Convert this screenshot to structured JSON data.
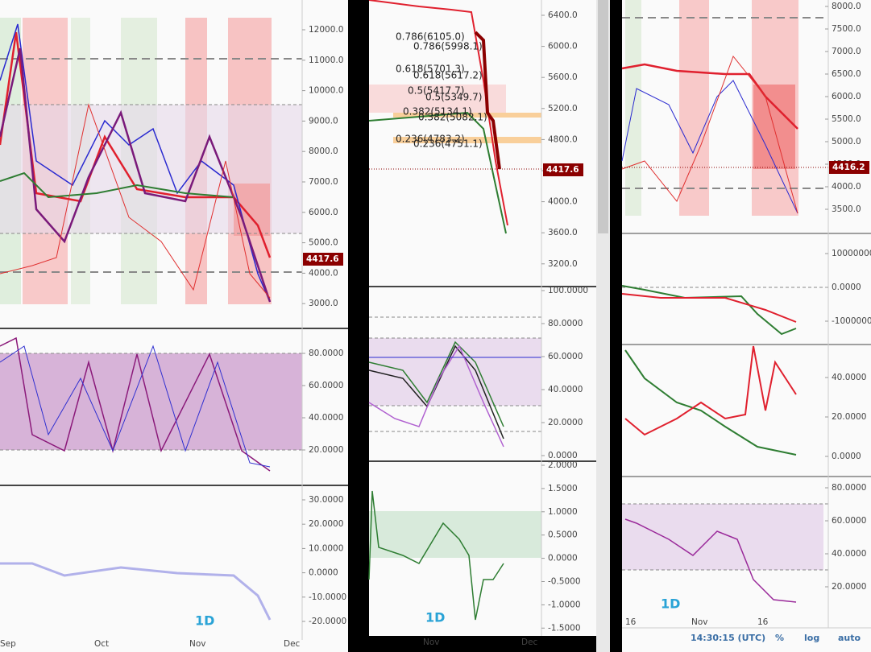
{
  "panels": [
    {
      "price_ticks": [
        "12000.0",
        "11000.0",
        "10000.0",
        "9000.0",
        "8000.0",
        "7000.0",
        "6000.0",
        "5000.0",
        "4000.0",
        "3000.0"
      ],
      "price_tag": "4417.6",
      "osc_ticks": [
        "80.0000",
        "60.0000",
        "40.0000",
        "20.0000"
      ],
      "macd_ticks": [
        "30.0000",
        "20.0000",
        "10.0000",
        "0.0000",
        "-10.0000",
        "-20.0000"
      ],
      "interval": "1D",
      "time_labels": [
        "Sep",
        "Oct",
        "Nov",
        "Dec"
      ]
    },
    {
      "price_ticks": [
        "6400.0",
        "6000.0",
        "5600.0",
        "5200.0",
        "4800.0",
        "4400.0",
        "4000.0",
        "3600.0",
        "3200.0"
      ],
      "price_tag": "4417.6",
      "osc_ticks": [
        "100.0000",
        "80.0000",
        "60.0000",
        "40.0000",
        "20.0000",
        "0.0000"
      ],
      "macd_ticks": [
        "2.0000",
        "1.5000",
        "1.0000",
        "0.5000",
        "0.0000",
        "-0.5000",
        "-1.0000",
        "-1.5000"
      ],
      "fib_labels": [
        "0.786(6105.0)",
        "0.786(5998.1)",
        "0.618(5701.3)",
        "0.618(5617.2)",
        "0.5(5417.7)",
        "0.5(5349.7)",
        "0.382(5134.1)",
        "0.382(5082.1)",
        "0.236(4783.2)",
        "0.236(4751.1)"
      ],
      "interval": "1D",
      "time_labels": [
        "Nov",
        "Dec"
      ]
    },
    {
      "price_ticks": [
        "8000.0",
        "7500.0",
        "7000.0",
        "6500.0",
        "6000.0",
        "5500.0",
        "5000.0",
        "4500.0",
        "4000.0",
        "3500.0"
      ],
      "price_tag": "4416.2",
      "volume_ticks": [
        "10000000",
        "0.0000",
        "-10000000"
      ],
      "osc_ticks": [
        "40.0000",
        "20.0000",
        "0.0000"
      ],
      "rsi_ticks": [
        "80.0000",
        "60.0000",
        "40.0000",
        "20.0000"
      ],
      "interval": "1D",
      "time_labels": [
        "16",
        "Nov",
        "16"
      ],
      "toolbar": [
        "14:30:15 (UTC)",
        "%",
        "log",
        "auto"
      ]
    }
  ]
}
